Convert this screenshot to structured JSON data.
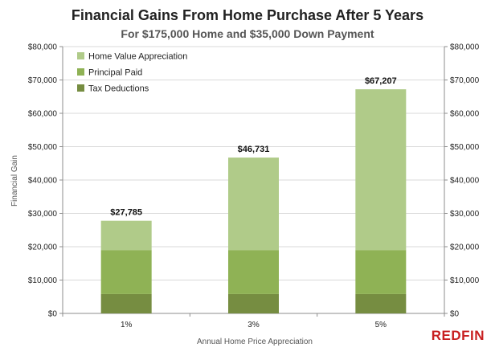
{
  "colors": {
    "home_value_appreciation": "#b0cb89",
    "principal_paid": "#8fb255",
    "tax_deductions": "#768d41",
    "brand": "#c82021",
    "grid": "#d9d9d9",
    "axis": "#8c8c8c"
  },
  "brand": {
    "logo_text": "REDFIN"
  },
  "chart_data": {
    "type": "bar",
    "stacked": true,
    "title": "Financial Gains From Home Purchase After 5 Years",
    "subtitle": "For $175,000 Home and $35,000 Down Payment",
    "xlabel": "Annual Home Price Appreciation",
    "ylabel": "Financial Gain",
    "categories": [
      "1%",
      "3%",
      "5%"
    ],
    "ylim": [
      0,
      80000
    ],
    "yticks": [
      0,
      10000,
      20000,
      30000,
      40000,
      50000,
      60000,
      70000,
      80000
    ],
    "ytick_labels": [
      "$0",
      "$10,000",
      "$20,000",
      "$30,000",
      "$40,000",
      "$50,000",
      "$60,000",
      "$70,000",
      "$80,000"
    ],
    "secondary_y_axis": true,
    "grid": true,
    "legend_position": "top-left",
    "series": [
      {
        "name": "Tax Deductions",
        "color_key": "tax_deductions",
        "values": [
          5800,
          5800,
          5800
        ]
      },
      {
        "name": "Principal Paid",
        "color_key": "principal_paid",
        "values": [
          13200,
          13200,
          13200
        ]
      },
      {
        "name": "Home Value Appreciation",
        "color_key": "home_value_appreciation",
        "values": [
          8785,
          27731,
          48207
        ]
      }
    ],
    "legend_order": [
      "Home Value Appreciation",
      "Principal Paid",
      "Tax Deductions"
    ],
    "totals": [
      27785,
      46731,
      67207
    ],
    "total_labels": [
      "$27,785",
      "$46,731",
      "$67,207"
    ]
  }
}
